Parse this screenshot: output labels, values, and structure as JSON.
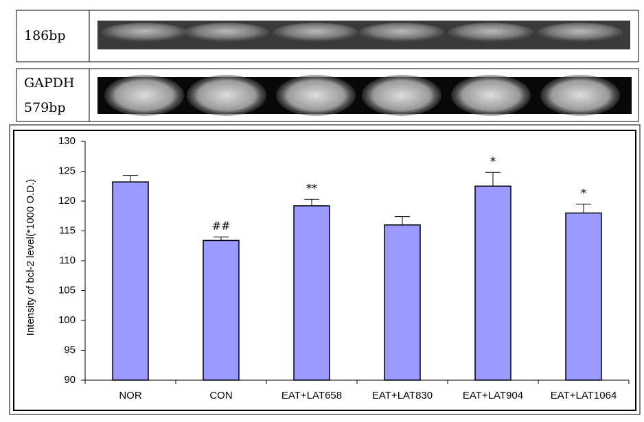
{
  "gels": {
    "target_label": "186bp",
    "control_label": [
      "GAPDH",
      "579bp"
    ]
  },
  "chart_data": {
    "type": "bar",
    "y_label": "Intensity of bcl-2 level(*1000 O.D.)",
    "categories": [
      "NOR",
      "CON",
      "EAT+LAT658",
      "EAT+LAT830",
      "EAT+LAT904",
      "EAT+LAT1064"
    ],
    "values": [
      123.2,
      113.4,
      119.2,
      116.0,
      122.5,
      118.0
    ],
    "errors": [
      1.1,
      0.6,
      1.1,
      1.4,
      2.3,
      1.5
    ],
    "annotations": [
      null,
      "##",
      "**",
      null,
      "*",
      "*"
    ],
    "color": "#9999ff",
    "ylim": [
      90,
      130
    ],
    "yticks": [
      90,
      95,
      100,
      105,
      110,
      115,
      120,
      125,
      130
    ]
  }
}
